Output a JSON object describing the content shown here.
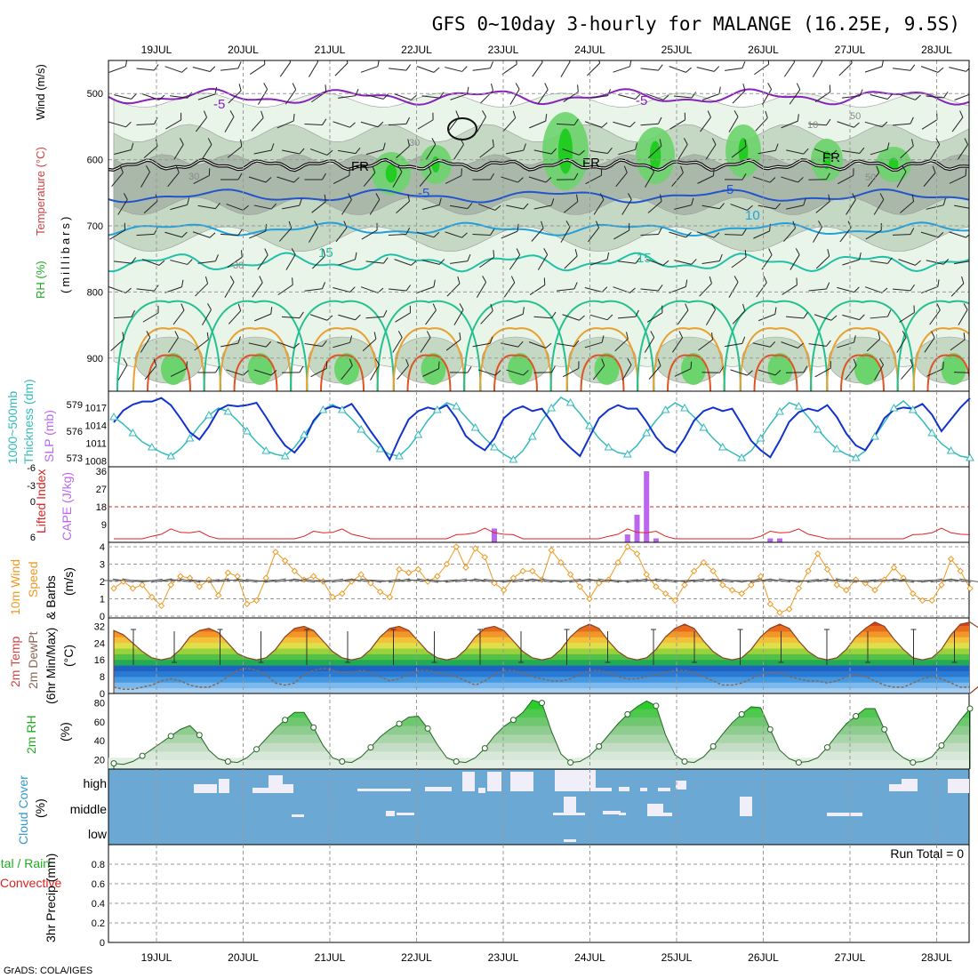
{
  "chart_data": [
    {
      "type": "heatmap",
      "title": "GFS 0~10day 3-hourly for MALANGE (16.25E, 9.5S)",
      "x_dates": [
        "19JUL",
        "20JUL",
        "21JUL",
        "22JUL",
        "23JUL",
        "24JUL",
        "25JUL",
        "26JUL",
        "27JUL",
        "28JUL"
      ],
      "ylabel_lines": [
        "RH (%)",
        "Temperature (°C)",
        "Wind (m/s)"
      ],
      "ylabel_units": "(millibars)",
      "ylim": [
        950,
        450
      ],
      "yticks": [
        500,
        600,
        700,
        800,
        900
      ],
      "contour_labels": [
        "-5",
        "-5",
        "FR",
        "FR",
        "FR",
        "-5",
        "-5",
        "10",
        "15",
        "15",
        "30",
        "30",
        "30",
        "50",
        "10",
        "50"
      ],
      "colors": {
        "rh_light": "#eaf5ea",
        "rh_mid": "#c4d8c4",
        "rh_gray": "#aab8aa",
        "rh_green": "#6cd46c",
        "rh_bright": "#22cc22",
        "t_minus5": "#8822bb",
        "t_fr": "#111111",
        "t_5": "#2255cc",
        "t_10": "#22a0dd",
        "t_15": "#20c0a8",
        "t_20": "#22c090",
        "t_25": "#e8a030",
        "t_30": "#dd5522"
      }
    },
    {
      "type": "line",
      "ylabel_left": [
        "1000~500mb",
        "Thickness (dm)"
      ],
      "ylabel_right": "SLP (mb)",
      "yticks_left": [
        573,
        576,
        579
      ],
      "yticks_right": [
        1008,
        1011,
        1014,
        1017
      ],
      "series": [
        {
          "units": "dm",
          "values": [
            577.6,
            576.8,
            575.8,
            574.8,
            574.2,
            573.6,
            573.2,
            574.0,
            575.2,
            576.6,
            577.8,
            578.6,
            578.2,
            577.2,
            576.0,
            574.8,
            573.8,
            573.4,
            573.2,
            574.2,
            575.6,
            577.0,
            578.4,
            579.0,
            578.4,
            577.4,
            576.2,
            575.0,
            574.0,
            573.4,
            573.2,
            574.2,
            575.6,
            577.2,
            578.4,
            579.2,
            578.8,
            577.6,
            576.4,
            575.2,
            574.2,
            573.4,
            572.8,
            573.8,
            575.4,
            577.2,
            578.6,
            579.8,
            579.2,
            578.0,
            576.6,
            575.2,
            574.2,
            573.6,
            573.4,
            574.4,
            575.8,
            577.2,
            578.4,
            579.2,
            578.6,
            577.6,
            576.4,
            575.2,
            574.2,
            573.6,
            573.0,
            573.8,
            575.2,
            576.8,
            578.2,
            579.2,
            578.8,
            577.6,
            576.2,
            575.0,
            574.0,
            573.4,
            573.0,
            573.8,
            575.4,
            577.0,
            578.6,
            579.4,
            578.4,
            577.2,
            575.8,
            574.6,
            573.8,
            573.2,
            573.0
          ]
        },
        {
          "units": "mb",
          "values": [
            1014.5,
            1016.5,
            1017.5,
            1018.0,
            1018.0,
            1018.6,
            1017.4,
            1015.2,
            1012.8,
            1011.6,
            1013.8,
            1016.6,
            1017.4,
            1017.2,
            1017.4,
            1017.8,
            1015.4,
            1012.8,
            1010.6,
            1009.4,
            1011.4,
            1014.8,
            1016.6,
            1017.2,
            1016.8,
            1017.6,
            1015.4,
            1013.0,
            1010.8,
            1008.2,
            1011.8,
            1015.0,
            1016.4,
            1017.0,
            1016.6,
            1017.4,
            1015.2,
            1012.2,
            1010.8,
            1009.8,
            1011.8,
            1015.2,
            1016.6,
            1017.2,
            1016.4,
            1016.8,
            1014.6,
            1011.8,
            1010.2,
            1008.8,
            1012.0,
            1015.2,
            1016.6,
            1017.4,
            1016.8,
            1016.8,
            1014.6,
            1012.0,
            1010.2,
            1009.4,
            1011.8,
            1014.8,
            1016.4,
            1017.0,
            1016.4,
            1016.8,
            1014.2,
            1011.4,
            1009.8,
            1008.6,
            1011.4,
            1014.6,
            1016.2,
            1016.8,
            1016.4,
            1017.4,
            1015.4,
            1012.6,
            1010.6,
            1009.8,
            1012.2,
            1015.2,
            1016.6,
            1017.0,
            1016.8,
            1017.6,
            1015.8,
            1013.0,
            1015.0,
            1017.0,
            1018.6
          ]
        }
      ],
      "colors": {
        "thickness": "#33bbbb",
        "slp": "#1133cc"
      }
    },
    {
      "type": "bar",
      "ylabel_left": "Lifted Index",
      "ylabel_right": "CAPE (J/kg)",
      "yticks_left": [
        6,
        0,
        -3,
        -6
      ],
      "yticks_right": [
        9,
        18,
        27,
        36
      ],
      "cape_values": [
        0,
        0,
        0,
        0,
        0,
        0,
        0,
        0,
        0,
        0,
        0,
        0,
        0,
        0,
        0,
        0,
        0,
        0,
        0,
        0,
        0,
        0,
        0,
        0,
        0,
        0,
        0,
        0,
        0,
        0,
        0,
        0,
        0,
        0,
        0,
        0,
        0,
        0,
        0,
        0,
        7,
        0,
        0,
        0,
        0,
        0,
        0,
        0,
        0,
        0,
        0,
        0,
        0,
        0,
        4,
        14,
        36,
        2,
        0,
        0,
        0,
        0,
        0,
        0,
        0,
        0,
        0,
        0,
        0,
        2,
        2,
        0,
        0,
        0,
        0,
        0,
        0,
        0,
        0,
        0,
        0,
        0,
        0,
        0,
        0,
        0,
        0,
        0,
        0,
        0,
        0
      ],
      "li_values": [
        6,
        6,
        6,
        6,
        6,
        6,
        6,
        6,
        6,
        6,
        6,
        6,
        6,
        6,
        6,
        6,
        6,
        6,
        6,
        6,
        6,
        6,
        6,
        6,
        6,
        6,
        6,
        6,
        6,
        6,
        6,
        6,
        6,
        6,
        6,
        6,
        6,
        6,
        6,
        6,
        6,
        6,
        6,
        6,
        6,
        6,
        6,
        6,
        6,
        6,
        6,
        6,
        6,
        6,
        6,
        6,
        6,
        6,
        6,
        6,
        6,
        6,
        6,
        6,
        6,
        6,
        6,
        6,
        6,
        6,
        6,
        6,
        6,
        6,
        6,
        6,
        6,
        6,
        6,
        6,
        6,
        6,
        6,
        6,
        6,
        6,
        6,
        6,
        6,
        6,
        6
      ],
      "colors": {
        "cape": "#bb66ee",
        "li": "#dd2222"
      }
    },
    {
      "type": "line",
      "ylabel": [
        "10m Wind",
        "Speed",
        "& Barbs",
        "(m/s)"
      ],
      "ylim": [
        0,
        4
      ],
      "yticks": [
        0,
        1,
        2,
        3,
        4
      ],
      "series": [
        {
          "units": "m/s",
          "values": [
            1.6,
            2.0,
            1.6,
            1.8,
            1.1,
            0.6,
            1.8,
            2.3,
            2.2,
            1.7,
            2.1,
            1.2,
            2.5,
            2.3,
            0.7,
            0.9,
            2.2,
            3.7,
            3.2,
            2.6,
            2.1,
            2.3,
            2.0,
            1.1,
            1.3,
            2.0,
            2.4,
            1.9,
            1.4,
            1.1,
            2.7,
            2.5,
            2.7,
            2.0,
            2.3,
            3.0,
            4.0,
            2.8,
            3.9,
            3.4,
            1.9,
            1.5,
            2.2,
            2.6,
            2.6,
            2.1,
            3.8,
            3.1,
            2.4,
            1.7,
            1.0,
            1.9,
            2.1,
            3.1,
            4.0,
            3.6,
            2.4,
            1.7,
            1.3,
            0.9,
            1.8,
            2.6,
            3.1,
            2.6,
            1.8,
            1.5,
            1.3,
            1.8,
            2.3,
            0.7,
            0.2,
            0.4,
            1.6,
            2.6,
            3.6,
            2.7,
            1.8,
            1.5,
            2.1,
            1.9,
            1.5,
            2.1,
            2.8,
            2.2,
            1.3,
            0.9,
            0.9,
            1.8,
            3.3,
            2.6,
            1.6
          ]
        }
      ],
      "colors": {
        "speed": "#ee9922"
      }
    },
    {
      "type": "area",
      "ylabel": [
        "2m Temp",
        "2m DewPt",
        "(6hr Min/Max)",
        "(°C)"
      ],
      "ylim": [
        0,
        36
      ],
      "yticks": [
        0,
        8,
        16,
        24,
        32
      ],
      "series": [
        {
          "units": "°C",
          "values": [
            30,
            28,
            24,
            20,
            17,
            16,
            17,
            21,
            27,
            30,
            31,
            29,
            24,
            19,
            17,
            16,
            17,
            21,
            27,
            31,
            32,
            30,
            25,
            20,
            17,
            16,
            17,
            21,
            27,
            31,
            32,
            30,
            25,
            20,
            17,
            16,
            17,
            21,
            27,
            31,
            32,
            30,
            25,
            20,
            17,
            16,
            17,
            21,
            27,
            31,
            33,
            31,
            25,
            20,
            17,
            16,
            17,
            21,
            27,
            31,
            33,
            31,
            25,
            20,
            17,
            16,
            17,
            21,
            27,
            31,
            33,
            31,
            25,
            20,
            17,
            16,
            17,
            21,
            27,
            31,
            34,
            32,
            26,
            21,
            17,
            16,
            17,
            21,
            28,
            33,
            34,
            31,
            25,
            19,
            15
          ]
        },
        {
          "units": "°C",
          "values": [
            3,
            2,
            2,
            3,
            4,
            6,
            7,
            6,
            4,
            3,
            3,
            5,
            8,
            11,
            12,
            11,
            9,
            5,
            4,
            5,
            9,
            11,
            12,
            11,
            10,
            10,
            11,
            10,
            8,
            6,
            7,
            9,
            11,
            11,
            10,
            9,
            8,
            6,
            4,
            6,
            9,
            11,
            11,
            10,
            8,
            7,
            6,
            6,
            7,
            9,
            11,
            11,
            10,
            8,
            7,
            7,
            8,
            9,
            10,
            11,
            11,
            10,
            8,
            6,
            4,
            4,
            5,
            7,
            9,
            10,
            10,
            8,
            7,
            6,
            6,
            5,
            6,
            8,
            9,
            8,
            6,
            4,
            3,
            3,
            5,
            7,
            8,
            7,
            5,
            3,
            3
          ]
        }
      ],
      "colors": {
        "dewpt": "#886655",
        "temp": "#884422"
      }
    },
    {
      "type": "area",
      "ylabel": [
        "2m RH",
        "(%)"
      ],
      "ylim": [
        10,
        90
      ],
      "yticks": [
        20,
        40,
        60,
        80
      ],
      "series": [
        {
          "units": "%",
          "values": [
            16,
            15,
            18,
            24,
            31,
            38,
            45,
            52,
            56,
            46,
            30,
            21,
            18,
            17,
            22,
            31,
            42,
            53,
            62,
            70,
            70,
            54,
            35,
            22,
            18,
            17,
            23,
            33,
            44,
            52,
            58,
            65,
            66,
            53,
            36,
            22,
            18,
            17,
            22,
            32,
            45,
            55,
            62,
            70,
            83,
            80,
            50,
            26,
            17,
            18,
            24,
            34,
            46,
            58,
            68,
            76,
            82,
            77,
            46,
            25,
            18,
            17,
            23,
            34,
            47,
            59,
            68,
            76,
            75,
            52,
            30,
            21,
            17,
            18,
            22,
            33,
            46,
            58,
            66,
            74,
            74,
            52,
            30,
            22,
            17,
            18,
            23,
            35,
            48,
            62,
            74
          ]
        }
      ],
      "colors": {
        "rh": "#22bb22"
      }
    },
    {
      "type": "table",
      "ylabel": [
        "Cloud Cover",
        "(%)"
      ],
      "levels": [
        "high",
        "middle",
        "low"
      ],
      "colors": {
        "background": "#6ba8d4",
        "cloud": "#f0eef8"
      }
    },
    {
      "type": "line",
      "ylabel_total": "Total / Rain",
      "ylabel_conv": "Convective",
      "ylabel": [
        "3hr Precip (mm)"
      ],
      "ylim": [
        0,
        1
      ],
      "yticks": [
        0,
        0.2,
        0.4,
        0.6,
        0.8
      ],
      "annotation": "Run Total = 0",
      "series": [
        {
          "units": "mm",
          "values": [
            0,
            0,
            0,
            0,
            0,
            0,
            0,
            0,
            0,
            0,
            0,
            0,
            0,
            0,
            0,
            0,
            0,
            0,
            0,
            0,
            0,
            0,
            0,
            0,
            0,
            0,
            0,
            0,
            0,
            0,
            0,
            0,
            0,
            0,
            0,
            0,
            0,
            0,
            0,
            0,
            0,
            0,
            0,
            0,
            0,
            0,
            0,
            0,
            0,
            0,
            0,
            0,
            0,
            0,
            0,
            0,
            0,
            0,
            0,
            0,
            0,
            0,
            0,
            0,
            0,
            0,
            0,
            0,
            0,
            0,
            0,
            0,
            0,
            0,
            0,
            0,
            0,
            0,
            0,
            0,
            0,
            0,
            0,
            0,
            0,
            0,
            0,
            0,
            0,
            0,
            0
          ]
        }
      ]
    }
  ],
  "footer": "GrADS: COLA/IGES"
}
